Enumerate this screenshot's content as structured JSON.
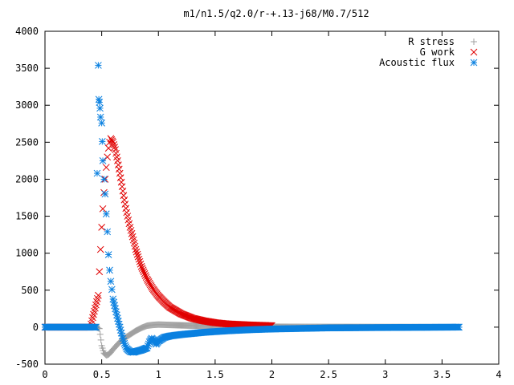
{
  "chart_data": {
    "type": "scatter",
    "title": "m1/n1.5/q2.0/r-+.13-j68/M0.7/512",
    "xlabel": "",
    "ylabel": "",
    "xlim": [
      0,
      4
    ],
    "ylim": [
      -500,
      4000
    ],
    "xticks": [
      "0",
      "0.5",
      "1",
      "1.5",
      "2",
      "2.5",
      "3",
      "3.5",
      "4"
    ],
    "yticks": [
      "-500",
      "0",
      "500",
      "1000",
      "1500",
      "2000",
      "2500",
      "3000",
      "3500",
      "4000"
    ],
    "grid": false,
    "legend_position": "top-right",
    "series": [
      {
        "name": "R stress",
        "marker": "+",
        "color": "#a0a0a0",
        "points": [
          [
            0.0,
            0
          ],
          [
            0.1,
            0
          ],
          [
            0.2,
            0
          ],
          [
            0.3,
            0
          ],
          [
            0.4,
            0
          ],
          [
            0.45,
            0
          ],
          [
            0.48,
            -20
          ],
          [
            0.5,
            -250
          ],
          [
            0.52,
            -350
          ],
          [
            0.54,
            -380
          ],
          [
            0.56,
            -370
          ],
          [
            0.58,
            -340
          ],
          [
            0.6,
            -300
          ],
          [
            0.63,
            -250
          ],
          [
            0.66,
            -200
          ],
          [
            0.7,
            -150
          ],
          [
            0.75,
            -100
          ],
          [
            0.8,
            -50
          ],
          [
            0.85,
            -10
          ],
          [
            0.9,
            20
          ],
          [
            0.95,
            30
          ],
          [
            1.0,
            35
          ],
          [
            1.1,
            30
          ],
          [
            1.2,
            25
          ],
          [
            1.3,
            20
          ],
          [
            1.5,
            15
          ],
          [
            1.8,
            10
          ],
          [
            2.0,
            5
          ],
          [
            2.5,
            3
          ],
          [
            3.0,
            2
          ],
          [
            3.65,
            0
          ]
        ]
      },
      {
        "name": "G work",
        "marker": "x",
        "color": "#e00000",
        "points": [
          [
            0.0,
            0
          ],
          [
            0.2,
            0
          ],
          [
            0.4,
            0
          ],
          [
            0.47,
            430
          ],
          [
            0.48,
            750
          ],
          [
            0.49,
            1050
          ],
          [
            0.5,
            1350
          ],
          [
            0.51,
            1600
          ],
          [
            0.52,
            1820
          ],
          [
            0.53,
            2000
          ],
          [
            0.54,
            2160
          ],
          [
            0.55,
            2300
          ],
          [
            0.56,
            2420
          ],
          [
            0.57,
            2500
          ],
          [
            0.58,
            2550
          ],
          [
            0.6,
            2500
          ],
          [
            0.62,
            2400
          ],
          [
            0.64,
            2250
          ],
          [
            0.66,
            2080
          ],
          [
            0.68,
            1900
          ],
          [
            0.7,
            1720
          ],
          [
            0.72,
            1550
          ],
          [
            0.75,
            1350
          ],
          [
            0.78,
            1180
          ],
          [
            0.8,
            1050
          ],
          [
            0.85,
            820
          ],
          [
            0.9,
            650
          ],
          [
            0.95,
            520
          ],
          [
            1.0,
            420
          ],
          [
            1.05,
            340
          ],
          [
            1.1,
            270
          ],
          [
            1.2,
            180
          ],
          [
            1.3,
            120
          ],
          [
            1.4,
            85
          ],
          [
            1.5,
            60
          ],
          [
            1.6,
            45
          ],
          [
            1.8,
            30
          ],
          [
            2.0,
            20
          ]
        ]
      },
      {
        "name": "Acoustic flux",
        "marker": "*",
        "color": "#0a80e0",
        "points": [
          [
            0.0,
            0
          ],
          [
            0.1,
            0
          ],
          [
            0.2,
            0
          ],
          [
            0.3,
            0
          ],
          [
            0.4,
            0
          ],
          [
            0.45,
            0
          ],
          [
            0.46,
            2080
          ],
          [
            0.47,
            3540
          ],
          [
            0.475,
            3080
          ],
          [
            0.48,
            3040
          ],
          [
            0.485,
            2960
          ],
          [
            0.49,
            2840
          ],
          [
            0.5,
            2760
          ],
          [
            0.505,
            2510
          ],
          [
            0.51,
            2250
          ],
          [
            0.52,
            2000
          ],
          [
            0.53,
            1800
          ],
          [
            0.54,
            1530
          ],
          [
            0.55,
            1290
          ],
          [
            0.56,
            980
          ],
          [
            0.57,
            770
          ],
          [
            0.58,
            620
          ],
          [
            0.59,
            510
          ],
          [
            0.6,
            380
          ],
          [
            0.62,
            250
          ],
          [
            0.64,
            120
          ],
          [
            0.66,
            0
          ],
          [
            0.68,
            -120
          ],
          [
            0.7,
            -220
          ],
          [
            0.72,
            -290
          ],
          [
            0.75,
            -330
          ],
          [
            0.78,
            -340
          ],
          [
            0.8,
            -330
          ],
          [
            0.85,
            -310
          ],
          [
            0.9,
            -280
          ],
          [
            0.92,
            -200
          ],
          [
            0.94,
            -150
          ],
          [
            0.96,
            -180
          ],
          [
            0.98,
            -230
          ],
          [
            1.0,
            -190
          ],
          [
            1.05,
            -140
          ],
          [
            1.1,
            -120
          ],
          [
            1.2,
            -100
          ],
          [
            1.4,
            -70
          ],
          [
            1.6,
            -50
          ],
          [
            1.8,
            -35
          ],
          [
            2.0,
            -25
          ],
          [
            2.5,
            -10
          ],
          [
            3.0,
            -5
          ],
          [
            3.65,
            0
          ]
        ]
      }
    ]
  }
}
